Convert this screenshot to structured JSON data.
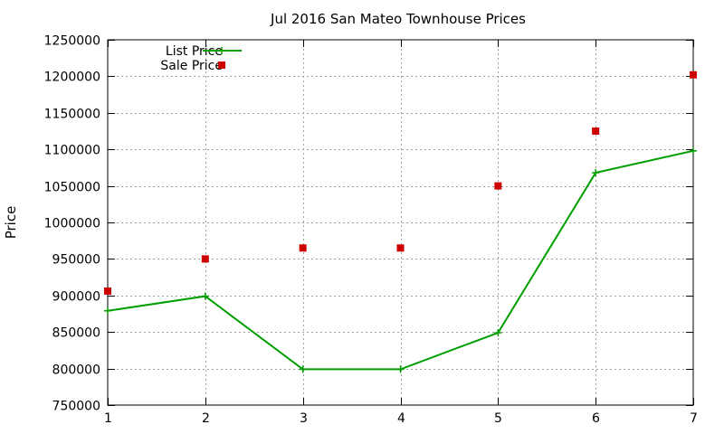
{
  "chart_data": {
    "type": "line",
    "title": "Jul 2016 San Mateo Townhouse Prices",
    "xlabel": "",
    "ylabel": "Price",
    "x": [
      1,
      2,
      3,
      4,
      5,
      6,
      7
    ],
    "xlim": [
      1,
      7
    ],
    "ylim": [
      750000,
      1250000
    ],
    "xticks": [
      1,
      2,
      3,
      4,
      5,
      6,
      7
    ],
    "yticks": [
      750000,
      800000,
      850000,
      900000,
      950000,
      1000000,
      1050000,
      1100000,
      1150000,
      1200000,
      1250000
    ],
    "grid": true,
    "legend_position": "top-left",
    "series": [
      {
        "name": "List Price",
        "style": "line-with-plus-markers",
        "color": "#009e00",
        "values": [
          879000,
          899000,
          799000,
          799000,
          849000,
          1068000,
          1098000
        ]
      },
      {
        "name": "Sale Price",
        "style": "square-markers",
        "color": "#cc0000",
        "values": [
          906000,
          950000,
          965000,
          965000,
          1050000,
          1125000,
          1202000
        ]
      }
    ]
  }
}
